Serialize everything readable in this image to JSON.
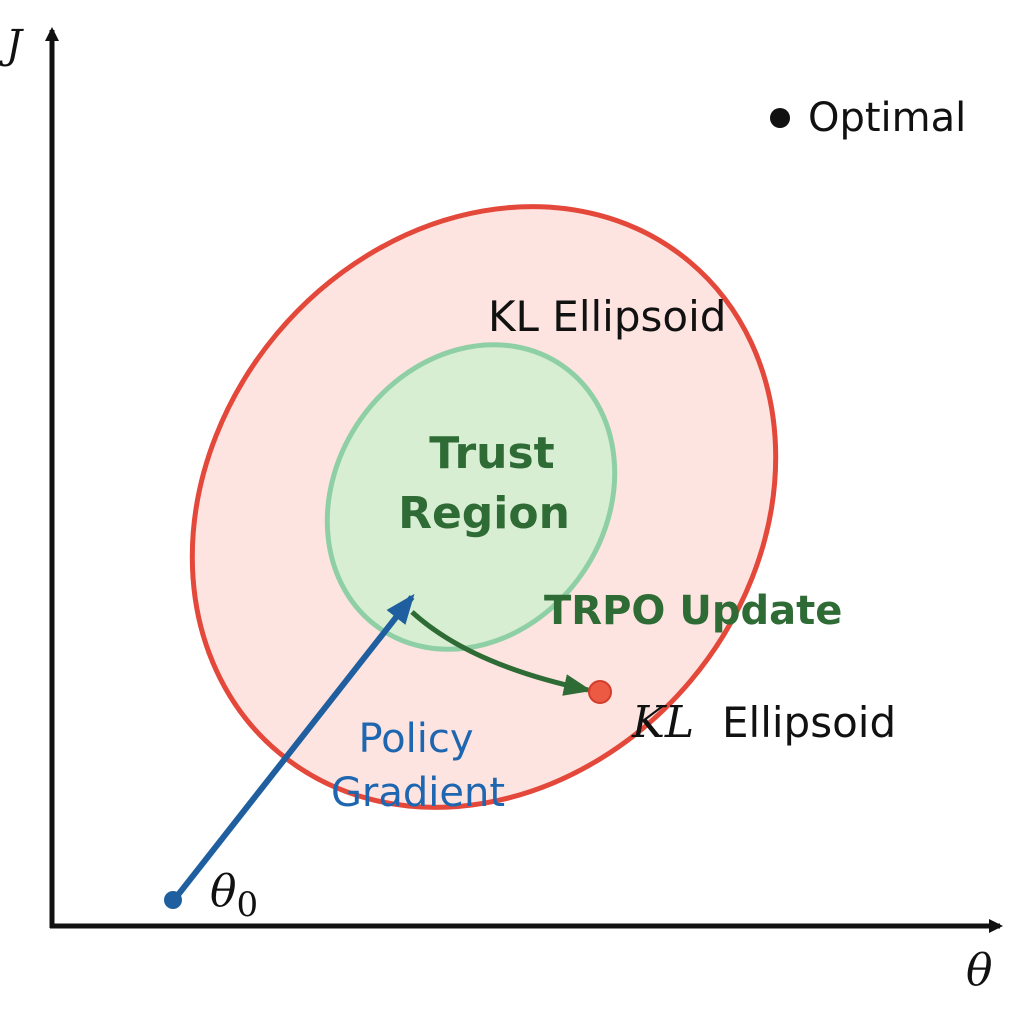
{
  "axes": {
    "y_label": "J",
    "x_label": "θ"
  },
  "legend": {
    "optimal_label": "Optimal"
  },
  "regions": {
    "kl_ellipsoid_label": "KL Ellipsoid",
    "trust_region_line1": "Trust",
    "trust_region_line2": "Region"
  },
  "arrows": {
    "trpo_update_label": "TRPO Update",
    "policy_gradient_line1": "Policy",
    "policy_gradient_line2": "Gradient"
  },
  "points": {
    "start_symbol": "θ",
    "start_subscript": "0",
    "update_point_math": "KL",
    "update_point_text": "Ellipsoid"
  },
  "colors": {
    "axis": "#111111",
    "kl_stroke": "#e4483a",
    "kl_fill": "#fde4e1",
    "trust_stroke": "#8fcfa5",
    "trust_fill": "#d7eed2",
    "trust_text": "#2e6b35",
    "trpo_arrow": "#2f6b35",
    "gradient_arrow": "#1f5f9f",
    "gradient_text": "#1f66b0",
    "update_point": "#ec5a44",
    "text": "#111111"
  }
}
